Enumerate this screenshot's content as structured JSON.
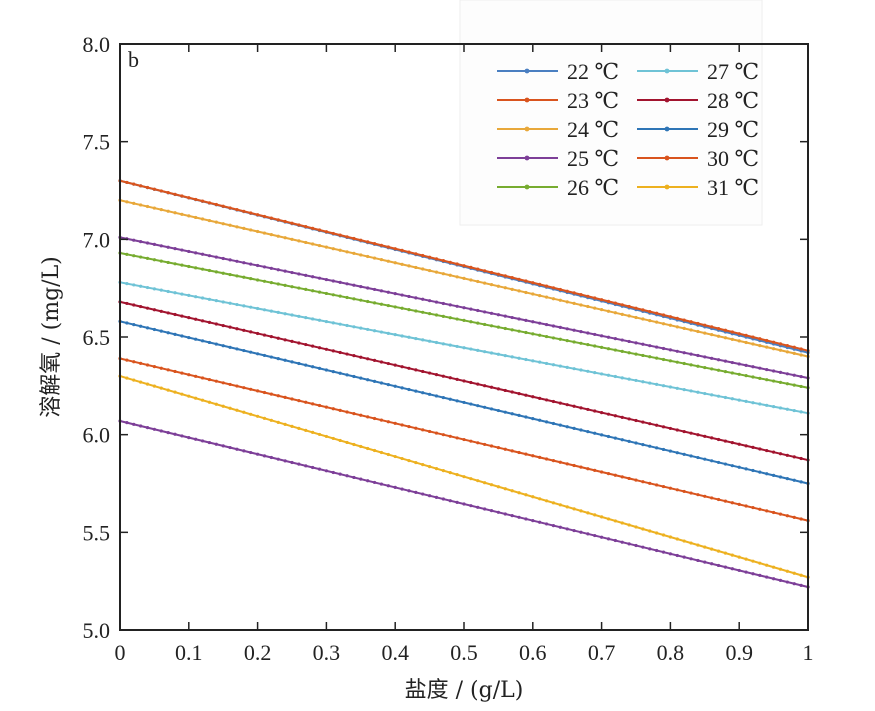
{
  "chart_data": {
    "type": "line",
    "panel_label": "b",
    "xlabel": "盐度 / (g/L)",
    "ylabel": "溶解氧 / (mg/L)",
    "xlim": [
      0,
      1
    ],
    "ylim": [
      5.0,
      8.0
    ],
    "x_ticks": [
      "0",
      "0.1",
      "0.2",
      "0.3",
      "0.4",
      "0.5",
      "0.6",
      "0.7",
      "0.8",
      "0.9",
      "1"
    ],
    "y_ticks": [
      "5.0",
      "5.5",
      "6.0",
      "6.5",
      "7.0",
      "7.5",
      "8.0"
    ],
    "grid": false,
    "legend_position": "top-right",
    "x": [
      0,
      1
    ],
    "series": [
      {
        "name": "22 ℃",
        "color": "#4a7fc1",
        "values": [
          7.3,
          6.42
        ]
      },
      {
        "name": "23 ℃",
        "color": "#d9541e",
        "values": [
          7.3,
          6.43
        ]
      },
      {
        "name": "24 ℃",
        "color": "#e8a83a",
        "values": [
          7.2,
          6.4
        ]
      },
      {
        "name": "25 ℃",
        "color": "#7d3f98",
        "values": [
          7.01,
          6.29
        ]
      },
      {
        "name": "26 ℃",
        "color": "#77ac30",
        "values": [
          6.93,
          6.24
        ]
      },
      {
        "name": "27 ℃",
        "color": "#6fc3d6",
        "values": [
          6.78,
          6.11
        ]
      },
      {
        "name": "28 ℃",
        "color": "#a2142f",
        "values": [
          6.68,
          5.87
        ]
      },
      {
        "name": "29 ℃",
        "color": "#2e75b6",
        "values": [
          6.58,
          5.75
        ]
      },
      {
        "name": "30 ℃",
        "color": "#d9541e",
        "values": [
          6.39,
          5.56
        ]
      },
      {
        "name": "31 ℃",
        "color": "#edb120",
        "values": [
          6.3,
          5.27
        ]
      },
      {
        "name": "",
        "color": "#7d3f98",
        "values": [
          6.07,
          5.22
        ]
      }
    ]
  }
}
